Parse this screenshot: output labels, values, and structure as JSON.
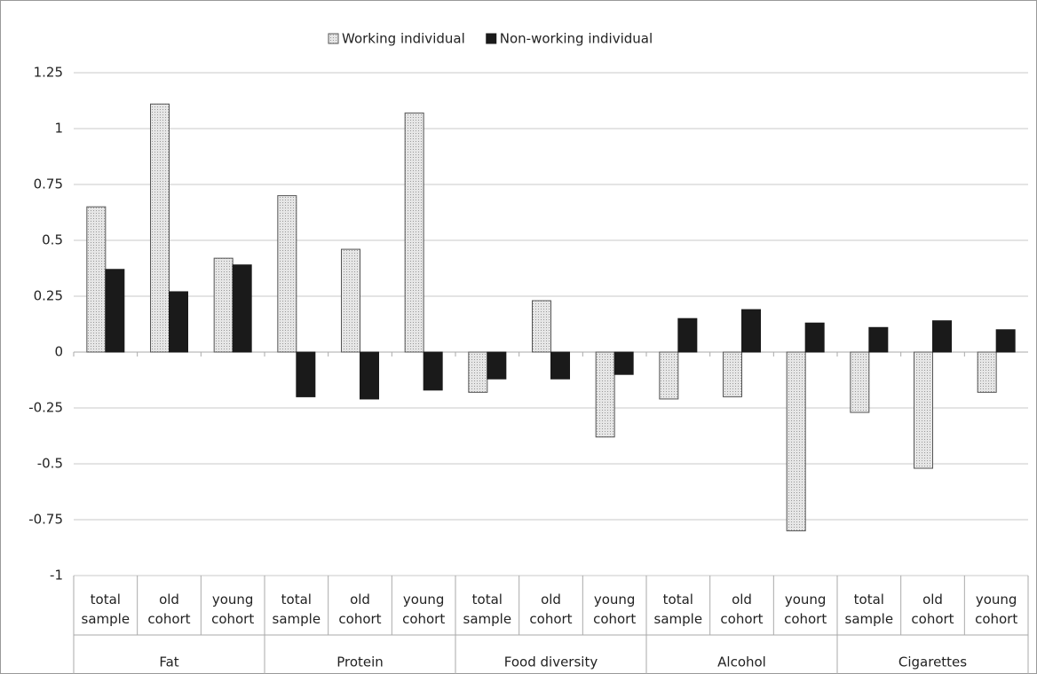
{
  "chart_data": {
    "type": "bar",
    "groups": [
      "Fat",
      "Protein",
      "Food diversity",
      "Alcohol",
      "Cigarettes"
    ],
    "categories": [
      [
        "total",
        "sample"
      ],
      [
        "old",
        "cohort"
      ],
      [
        "young",
        "cohort"
      ],
      [
        "total",
        "sample"
      ],
      [
        "old",
        "cohort"
      ],
      [
        "young",
        "cohort"
      ],
      [
        "total",
        "sample"
      ],
      [
        "old",
        "cohort"
      ],
      [
        "young",
        "cohort"
      ],
      [
        "total",
        "sample"
      ],
      [
        "old",
        "cohort"
      ],
      [
        "young",
        "cohort"
      ],
      [
        "total",
        "sample"
      ],
      [
        "old",
        "cohort"
      ],
      [
        "young",
        "cohort"
      ]
    ],
    "series": [
      {
        "name": "Working individual",
        "color": "#d9d9d9",
        "values": [
          0.65,
          1.11,
          0.42,
          0.7,
          0.46,
          1.07,
          -0.18,
          0.23,
          -0.38,
          -0.21,
          -0.2,
          -0.8,
          -0.27,
          -0.52,
          -0.18
        ]
      },
      {
        "name": "Non-working individual",
        "color": "#1a1a1a",
        "values": [
          0.37,
          0.27,
          0.39,
          -0.2,
          -0.21,
          -0.17,
          -0.12,
          -0.12,
          -0.1,
          0.15,
          0.19,
          0.13,
          0.11,
          0.14,
          0.1
        ]
      }
    ],
    "ylim": [
      -1,
      1.25
    ],
    "yticks": [
      -1,
      -0.75,
      -0.5,
      -0.25,
      0,
      0.25,
      0.5,
      0.75,
      1,
      1.25
    ],
    "grid": true,
    "legend": "top"
  }
}
